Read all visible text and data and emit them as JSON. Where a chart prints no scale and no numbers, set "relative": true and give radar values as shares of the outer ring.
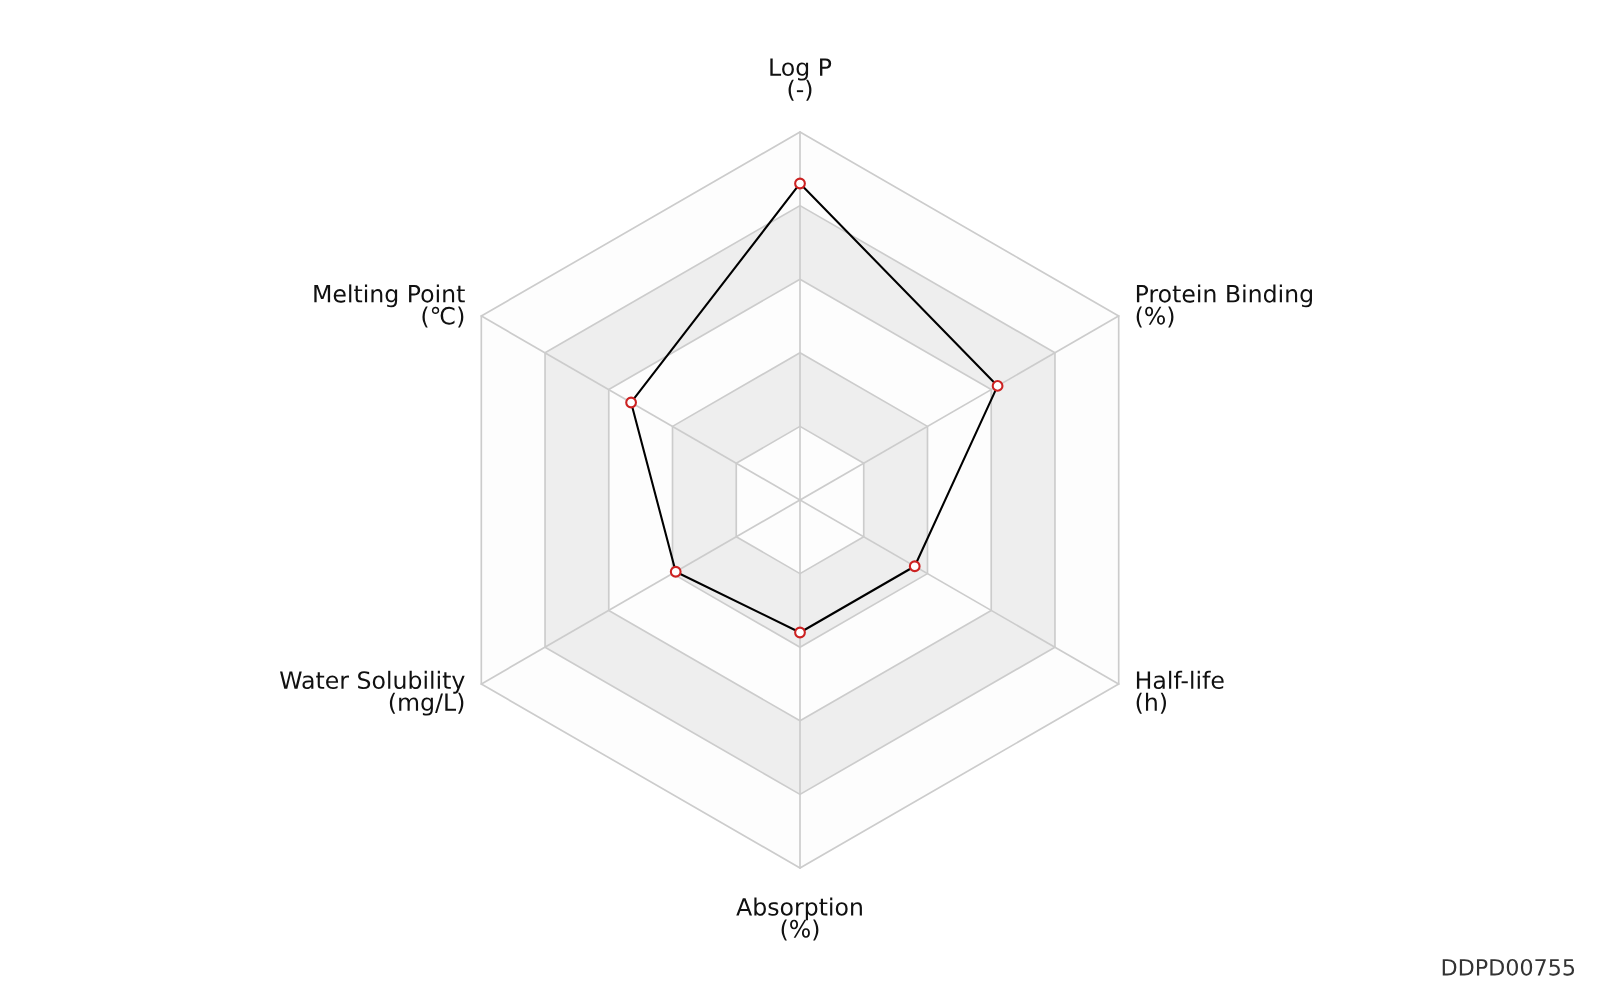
{
  "chart_data": {
    "type": "radar",
    "relative": true,
    "marker": "circle",
    "line_style": "solid",
    "categories": [
      "Log P\n(-)",
      "Protein Binding\n(%)",
      "Half-life\n(h)",
      "Absorption\n(%)",
      "Water Solubility\n(mg/L)",
      "Melting Point\n(℃)"
    ],
    "series": [
      {
        "color": "#000000",
        "values": [
          0.86,
          0.62,
          0.36,
          0.36,
          0.39,
          0.53
        ]
      }
    ],
    "annotations": [
      "DDPD00755"
    ]
  }
}
